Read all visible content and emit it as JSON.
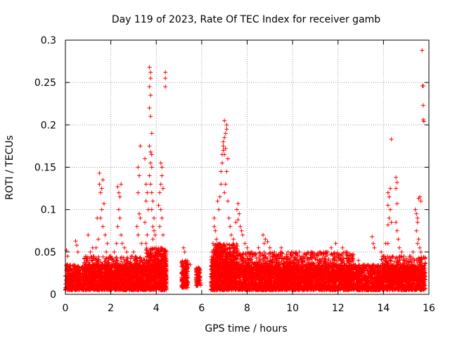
{
  "chart_data": {
    "type": "scatter",
    "title": "Day 119 of 2023, Rate Of TEC Index for receiver gamb",
    "xlabel": "GPS time / hours",
    "ylabel": "ROTI / TECUs",
    "xlim": [
      0,
      16
    ],
    "ylim": [
      0,
      0.3
    ],
    "xticks": [
      0,
      2,
      4,
      6,
      8,
      10,
      12,
      14,
      16
    ],
    "yticks": [
      0,
      0.05,
      0.1,
      0.15,
      0.2,
      0.25,
      0.3
    ],
    "xtick_labels": [
      "0",
      "2",
      "4",
      "6",
      "8",
      "10",
      "12",
      "14",
      "16"
    ],
    "ytick_labels": [
      "0",
      "0.05",
      "0.1",
      "0.15",
      "0.2",
      "0.25",
      "0.3"
    ],
    "grid": true,
    "marker": "+",
    "color": "#ff0000",
    "series": [
      {
        "name": "ROTI",
        "points": [
          [
            0.05,
            0.052
          ],
          [
            0.1,
            0.045
          ],
          [
            0.15,
            0.03
          ],
          [
            0.45,
            0.063
          ],
          [
            0.5,
            0.058
          ],
          [
            0.55,
            0.05
          ],
          [
            1.0,
            0.07
          ],
          [
            1.1,
            0.05
          ],
          [
            1.2,
            0.055
          ],
          [
            1.25,
            0.045
          ],
          [
            1.5,
            0.143
          ],
          [
            1.5,
            0.13
          ],
          [
            1.55,
            0.12
          ],
          [
            1.6,
            0.125
          ],
          [
            1.65,
            0.135
          ],
          [
            1.6,
            0.1
          ],
          [
            1.7,
            0.107
          ],
          [
            1.55,
            0.09
          ],
          [
            1.65,
            0.08
          ],
          [
            1.75,
            0.07
          ],
          [
            1.4,
            0.09
          ],
          [
            1.45,
            0.065
          ],
          [
            1.35,
            0.055
          ],
          [
            1.8,
            0.05
          ],
          [
            1.85,
            0.06
          ],
          [
            2.0,
            0.045
          ],
          [
            2.1,
            0.04
          ],
          [
            2.15,
            0.05
          ],
          [
            2.3,
            0.127
          ],
          [
            2.35,
            0.12
          ],
          [
            2.4,
            0.115
          ],
          [
            2.45,
            0.13
          ],
          [
            2.35,
            0.1
          ],
          [
            2.4,
            0.09
          ],
          [
            2.45,
            0.07
          ],
          [
            2.5,
            0.06
          ],
          [
            2.3,
            0.08
          ],
          [
            2.25,
            0.06
          ],
          [
            2.6,
            0.055
          ],
          [
            2.7,
            0.05
          ],
          [
            2.9,
            0.045
          ],
          [
            3.0,
            0.05
          ],
          [
            3.2,
            0.15
          ],
          [
            3.25,
            0.14
          ],
          [
            3.2,
            0.12
          ],
          [
            3.25,
            0.095
          ],
          [
            3.3,
            0.09
          ],
          [
            3.3,
            0.175
          ],
          [
            3.15,
            0.08
          ],
          [
            3.2,
            0.07
          ],
          [
            3.35,
            0.06
          ],
          [
            3.5,
            0.16
          ],
          [
            3.55,
            0.13
          ],
          [
            3.6,
            0.12
          ],
          [
            3.55,
            0.11
          ],
          [
            3.65,
            0.1
          ],
          [
            3.5,
            0.085
          ],
          [
            3.6,
            0.07
          ],
          [
            3.55,
            0.06
          ],
          [
            3.7,
            0.268
          ],
          [
            3.75,
            0.262
          ],
          [
            3.75,
            0.255
          ],
          [
            3.7,
            0.245
          ],
          [
            3.75,
            0.235
          ],
          [
            3.7,
            0.22
          ],
          [
            3.75,
            0.21
          ],
          [
            3.8,
            0.19
          ],
          [
            3.7,
            0.175
          ],
          [
            3.75,
            0.168
          ],
          [
            3.8,
            0.165
          ],
          [
            3.75,
            0.155
          ],
          [
            3.8,
            0.15
          ],
          [
            3.7,
            0.14
          ],
          [
            3.75,
            0.13
          ],
          [
            3.8,
            0.12
          ],
          [
            3.85,
            0.11
          ],
          [
            3.8,
            0.1
          ],
          [
            3.9,
            0.09
          ],
          [
            3.85,
            0.08
          ],
          [
            3.9,
            0.075
          ],
          [
            3.95,
            0.07
          ],
          [
            3.85,
            0.065
          ],
          [
            4.1,
            0.105
          ],
          [
            4.15,
            0.12
          ],
          [
            4.2,
            0.13
          ],
          [
            4.25,
            0.14
          ],
          [
            4.2,
            0.155
          ],
          [
            4.25,
            0.15
          ],
          [
            4.3,
            0.125
          ],
          [
            4.2,
            0.1
          ],
          [
            4.25,
            0.09
          ],
          [
            4.15,
            0.08
          ],
          [
            4.3,
            0.07
          ],
          [
            4.4,
            0.262
          ],
          [
            4.4,
            0.255
          ],
          [
            4.4,
            0.245
          ],
          [
            5.2,
            0.055
          ],
          [
            5.25,
            0.05
          ],
          [
            5.3,
            0.04
          ],
          [
            5.5,
            0.035
          ],
          [
            5.8,
            0.03
          ],
          [
            5.85,
            0.032
          ],
          [
            6.45,
            0.05
          ],
          [
            6.5,
            0.06
          ],
          [
            6.55,
            0.08
          ],
          [
            6.55,
            0.09
          ],
          [
            6.6,
            0.075
          ],
          [
            6.65,
            0.065
          ],
          [
            6.7,
            0.11
          ],
          [
            6.75,
            0.1
          ],
          [
            6.8,
            0.115
          ],
          [
            6.85,
            0.13
          ],
          [
            6.9,
            0.165
          ],
          [
            6.95,
            0.17
          ],
          [
            6.9,
            0.155
          ],
          [
            6.85,
            0.145
          ],
          [
            6.95,
            0.18
          ],
          [
            7.0,
            0.185
          ],
          [
            7.05,
            0.19
          ],
          [
            7.1,
            0.195
          ],
          [
            7.0,
            0.205
          ],
          [
            7.1,
            0.2
          ],
          [
            6.95,
            0.175
          ],
          [
            7.05,
            0.172
          ],
          [
            7.0,
            0.165
          ],
          [
            7.15,
            0.16
          ],
          [
            7.1,
            0.145
          ],
          [
            7.05,
            0.13
          ],
          [
            7.0,
            0.12
          ],
          [
            7.15,
            0.11
          ],
          [
            7.2,
            0.09
          ],
          [
            7.25,
            0.08
          ],
          [
            7.3,
            0.07
          ],
          [
            7.4,
            0.065
          ],
          [
            7.6,
            0.107
          ],
          [
            7.55,
            0.1
          ],
          [
            7.65,
            0.095
          ],
          [
            7.6,
            0.088
          ],
          [
            7.7,
            0.08
          ],
          [
            7.75,
            0.075
          ],
          [
            7.8,
            0.07
          ],
          [
            7.5,
            0.085
          ],
          [
            7.9,
            0.06
          ],
          [
            8.0,
            0.055
          ],
          [
            8.2,
            0.05
          ],
          [
            8.5,
            0.055
          ],
          [
            8.7,
            0.07
          ],
          [
            8.8,
            0.065
          ],
          [
            8.75,
            0.06
          ],
          [
            8.9,
            0.062
          ],
          [
            9.0,
            0.055
          ],
          [
            9.2,
            0.05
          ],
          [
            9.5,
            0.055
          ],
          [
            9.8,
            0.05
          ],
          [
            10.0,
            0.045
          ],
          [
            10.3,
            0.05
          ],
          [
            10.6,
            0.048
          ],
          [
            10.9,
            0.045
          ],
          [
            11.2,
            0.05
          ],
          [
            11.5,
            0.05
          ],
          [
            11.7,
            0.055
          ],
          [
            11.9,
            0.06
          ],
          [
            12.2,
            0.055
          ],
          [
            12.4,
            0.05
          ],
          [
            12.6,
            0.045
          ],
          [
            12.9,
            0.04
          ],
          [
            13.1,
            0.035
          ],
          [
            13.5,
            0.068
          ],
          [
            13.55,
            0.06
          ],
          [
            13.6,
            0.055
          ],
          [
            13.9,
            0.05
          ],
          [
            14.0,
            0.045
          ],
          [
            14.2,
            0.12
          ],
          [
            14.25,
            0.115
          ],
          [
            14.3,
            0.125
          ],
          [
            14.2,
            0.105
          ],
          [
            14.3,
            0.1
          ],
          [
            14.25,
            0.09
          ],
          [
            14.35,
            0.085
          ],
          [
            14.2,
            0.082
          ],
          [
            14.2,
            0.06
          ],
          [
            14.1,
            0.06
          ],
          [
            14.35,
            0.183
          ],
          [
            14.55,
            0.138
          ],
          [
            14.6,
            0.132
          ],
          [
            14.55,
            0.125
          ],
          [
            14.6,
            0.107
          ],
          [
            14.55,
            0.085
          ],
          [
            14.6,
            0.075
          ],
          [
            14.65,
            0.065
          ],
          [
            14.7,
            0.055
          ],
          [
            14.8,
            0.05
          ],
          [
            14.9,
            0.045
          ],
          [
            15.0,
            0.04
          ],
          [
            15.2,
            0.045
          ],
          [
            15.3,
            0.05
          ],
          [
            15.4,
            0.1
          ],
          [
            15.45,
            0.095
          ],
          [
            15.5,
            0.09
          ],
          [
            15.55,
            0.113
          ],
          [
            15.6,
            0.115
          ],
          [
            15.65,
            0.11
          ],
          [
            15.5,
            0.085
          ],
          [
            15.45,
            0.075
          ],
          [
            15.55,
            0.065
          ],
          [
            15.5,
            0.06
          ],
          [
            15.6,
            0.055
          ],
          [
            15.65,
            0.05
          ],
          [
            15.7,
            0.288
          ],
          [
            15.72,
            0.246
          ],
          [
            15.75,
            0.246
          ],
          [
            15.75,
            0.223
          ],
          [
            15.75,
            0.206
          ],
          [
            15.78,
            0.204
          ]
        ]
      }
    ],
    "dense_bands": [
      {
        "x_range": [
          0.0,
          4.45
        ],
        "y_range": [
          0.005,
          0.035
        ],
        "count": 2200,
        "seed": 11
      },
      {
        "x_range": [
          3.55,
          4.45
        ],
        "y_range": [
          0.02,
          0.055
        ],
        "count": 450,
        "seed": 13
      },
      {
        "x_range": [
          0.8,
          3.5
        ],
        "y_range": [
          0.02,
          0.045
        ],
        "count": 400,
        "seed": 17
      },
      {
        "x_range": [
          5.1,
          5.4
        ],
        "y_range": [
          0.008,
          0.04
        ],
        "count": 180,
        "seed": 19
      },
      {
        "x_range": [
          5.75,
          5.95
        ],
        "y_range": [
          0.01,
          0.032
        ],
        "count": 80,
        "seed": 23
      },
      {
        "x_range": [
          6.4,
          15.85
        ],
        "y_range": [
          0.005,
          0.035
        ],
        "count": 4200,
        "seed": 29
      },
      {
        "x_range": [
          6.4,
          12.7
        ],
        "y_range": [
          0.02,
          0.05
        ],
        "count": 1200,
        "seed": 31
      },
      {
        "x_range": [
          6.5,
          7.6
        ],
        "y_range": [
          0.03,
          0.06
        ],
        "count": 300,
        "seed": 37
      },
      {
        "x_range": [
          13.9,
          15.85
        ],
        "y_range": [
          0.015,
          0.045
        ],
        "count": 350,
        "seed": 41
      }
    ]
  }
}
